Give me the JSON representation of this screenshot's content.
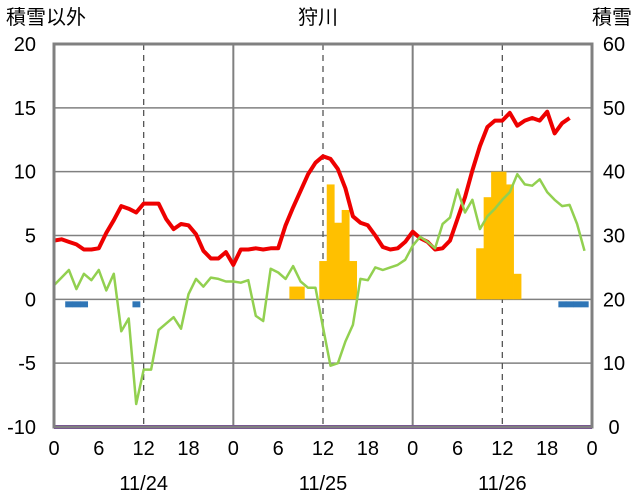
{
  "chart_data": {
    "type": "line",
    "title": "狩川",
    "y_left_label": "積雪以外",
    "y_right_label": "積雪",
    "ylim_left": [
      -10,
      20
    ],
    "ylim_right": [
      0,
      60
    ],
    "yticks_left": [
      "20",
      "15",
      "10",
      "5",
      "0",
      "-5",
      "-10"
    ],
    "yticks_right": [
      "60",
      "50",
      "40",
      "30",
      "20",
      "10",
      "0"
    ],
    "xlim_hours": [
      0,
      72
    ],
    "xtick_labels": [
      "0",
      "6",
      "12",
      "18",
      "0",
      "6",
      "12",
      "18",
      "0",
      "6",
      "12",
      "18",
      "0"
    ],
    "date_labels": [
      "11/24",
      "11/25",
      "11/26"
    ],
    "grid": "dashed vertical at hours 12, 36, 60; solid vertical at day boundaries 24, 48",
    "colors": {
      "temperature": "#ee0000",
      "wind": "#92d050",
      "precipitation": "#ffc000",
      "sunshine": "#2e75b6",
      "snow_depth": "#7030a0",
      "frame": "#808080"
    },
    "series": [
      {
        "key": "temperature",
        "axis": "left",
        "values": [
          [
            0,
            4.6
          ],
          [
            1,
            4.7
          ],
          [
            2,
            4.5
          ],
          [
            3,
            4.3
          ],
          [
            4,
            3.9
          ],
          [
            5,
            3.9
          ],
          [
            6,
            4.0
          ],
          [
            7,
            5.2
          ],
          [
            8,
            6.2
          ],
          [
            9,
            7.3
          ],
          [
            10,
            7.1
          ],
          [
            11,
            6.8
          ],
          [
            12,
            7.5
          ],
          [
            13,
            7.5
          ],
          [
            14,
            7.5
          ],
          [
            15,
            6.3
          ],
          [
            16,
            5.5
          ],
          [
            17,
            5.9
          ],
          [
            18,
            5.8
          ],
          [
            19,
            5.1
          ],
          [
            20,
            3.8
          ],
          [
            21,
            3.2
          ],
          [
            22,
            3.2
          ],
          [
            23,
            3.7
          ],
          [
            24,
            2.7
          ],
          [
            25,
            3.9
          ],
          [
            26,
            3.9
          ],
          [
            27,
            4.0
          ],
          [
            28,
            3.9
          ],
          [
            29,
            4.0
          ],
          [
            30,
            4.0
          ],
          [
            31,
            5.8
          ],
          [
            32,
            7.2
          ],
          [
            33,
            8.5
          ],
          [
            34,
            9.8
          ],
          [
            35,
            10.7
          ],
          [
            36,
            11.2
          ],
          [
            37,
            11.0
          ],
          [
            38,
            10.2
          ],
          [
            39,
            8.7
          ],
          [
            40,
            6.5
          ],
          [
            41,
            6.0
          ],
          [
            42,
            5.8
          ],
          [
            43,
            5.0
          ],
          [
            44,
            4.1
          ],
          [
            45,
            3.9
          ],
          [
            46,
            4.0
          ],
          [
            47,
            4.5
          ],
          [
            48,
            5.3
          ],
          [
            49,
            4.8
          ],
          [
            50,
            4.5
          ],
          [
            51,
            3.9
          ],
          [
            52,
            4.0
          ],
          [
            53,
            4.6
          ],
          [
            54,
            6.3
          ],
          [
            55,
            8.0
          ],
          [
            56,
            10.1
          ],
          [
            57,
            12.0
          ],
          [
            58,
            13.5
          ],
          [
            59,
            14.0
          ],
          [
            60,
            14.0
          ],
          [
            61,
            14.6
          ],
          [
            62,
            13.6
          ],
          [
            63,
            14.0
          ],
          [
            64,
            14.2
          ],
          [
            65,
            14.0
          ],
          [
            66,
            14.7
          ],
          [
            67,
            13.0
          ],
          [
            68,
            13.8
          ],
          [
            69,
            14.2
          ]
        ]
      },
      {
        "key": "wind",
        "axis": "left",
        "values": [
          [
            0,
            1.1
          ],
          [
            1,
            1.7
          ],
          [
            2,
            2.3
          ],
          [
            3,
            0.8
          ],
          [
            4,
            2.0
          ],
          [
            5,
            1.5
          ],
          [
            6,
            2.3
          ],
          [
            7,
            0.7
          ],
          [
            8,
            2.0
          ],
          [
            9,
            -2.5
          ],
          [
            10,
            -1.5
          ],
          [
            11,
            -8.2
          ],
          [
            12,
            -5.5
          ],
          [
            13,
            -5.5
          ],
          [
            14,
            -2.4
          ],
          [
            15,
            -1.9
          ],
          [
            16,
            -1.4
          ],
          [
            17,
            -2.3
          ],
          [
            18,
            0.4
          ],
          [
            19,
            1.6
          ],
          [
            20,
            1.0
          ],
          [
            21,
            1.7
          ],
          [
            22,
            1.6
          ],
          [
            23,
            1.4
          ],
          [
            24,
            1.4
          ],
          [
            25,
            1.3
          ],
          [
            26,
            1.5
          ],
          [
            27,
            -1.3
          ],
          [
            28,
            -1.7
          ],
          [
            29,
            2.4
          ],
          [
            30,
            2.1
          ],
          [
            31,
            1.6
          ],
          [
            32,
            2.6
          ],
          [
            33,
            1.4
          ],
          [
            34,
            0.9
          ],
          [
            35,
            0.9
          ],
          [
            36,
            -2.2
          ],
          [
            37,
            -5.2
          ],
          [
            38,
            -5.0
          ],
          [
            39,
            -3.3
          ],
          [
            40,
            -2.0
          ],
          [
            41,
            1.6
          ],
          [
            42,
            1.5
          ],
          [
            43,
            2.5
          ],
          [
            44,
            2.3
          ],
          [
            45,
            2.5
          ],
          [
            46,
            2.7
          ],
          [
            47,
            3.1
          ],
          [
            48,
            4.2
          ],
          [
            49,
            4.9
          ],
          [
            50,
            4.5
          ],
          [
            51,
            4.0
          ],
          [
            52,
            5.9
          ],
          [
            53,
            6.4
          ],
          [
            54,
            8.6
          ],
          [
            55,
            6.8
          ],
          [
            56,
            7.8
          ],
          [
            57,
            5.5
          ],
          [
            58,
            6.5
          ],
          [
            59,
            7.1
          ],
          [
            60,
            7.8
          ],
          [
            61,
            8.4
          ],
          [
            62,
            9.8
          ],
          [
            63,
            9.0
          ],
          [
            64,
            8.9
          ],
          [
            65,
            9.4
          ],
          [
            66,
            8.4
          ],
          [
            67,
            7.8
          ],
          [
            68,
            7.3
          ],
          [
            69,
            7.4
          ],
          [
            70,
            5.9
          ],
          [
            71,
            3.8
          ]
        ]
      },
      {
        "key": "precipitation",
        "axis": "left",
        "type": "bar",
        "values": [
          [
            32,
            1
          ],
          [
            33,
            1
          ],
          [
            34,
            0
          ],
          [
            35,
            0
          ],
          [
            36,
            3
          ],
          [
            37,
            9
          ],
          [
            38,
            6
          ],
          [
            39,
            7
          ],
          [
            40,
            3
          ],
          [
            57,
            4
          ],
          [
            58,
            8
          ],
          [
            59,
            10
          ],
          [
            60,
            10
          ],
          [
            61,
            9
          ],
          [
            62,
            2
          ]
        ]
      },
      {
        "key": "sunshine",
        "axis": "left",
        "type": "bar_below",
        "values": [
          [
            2,
            1
          ],
          [
            3,
            1
          ],
          [
            4,
            1
          ],
          [
            11,
            1
          ],
          [
            68,
            1
          ],
          [
            69,
            1
          ],
          [
            70,
            1
          ],
          [
            71,
            1
          ]
        ]
      },
      {
        "key": "snow_depth",
        "axis": "right",
        "values": [
          [
            0,
            0
          ],
          [
            72,
            0
          ]
        ]
      }
    ]
  }
}
